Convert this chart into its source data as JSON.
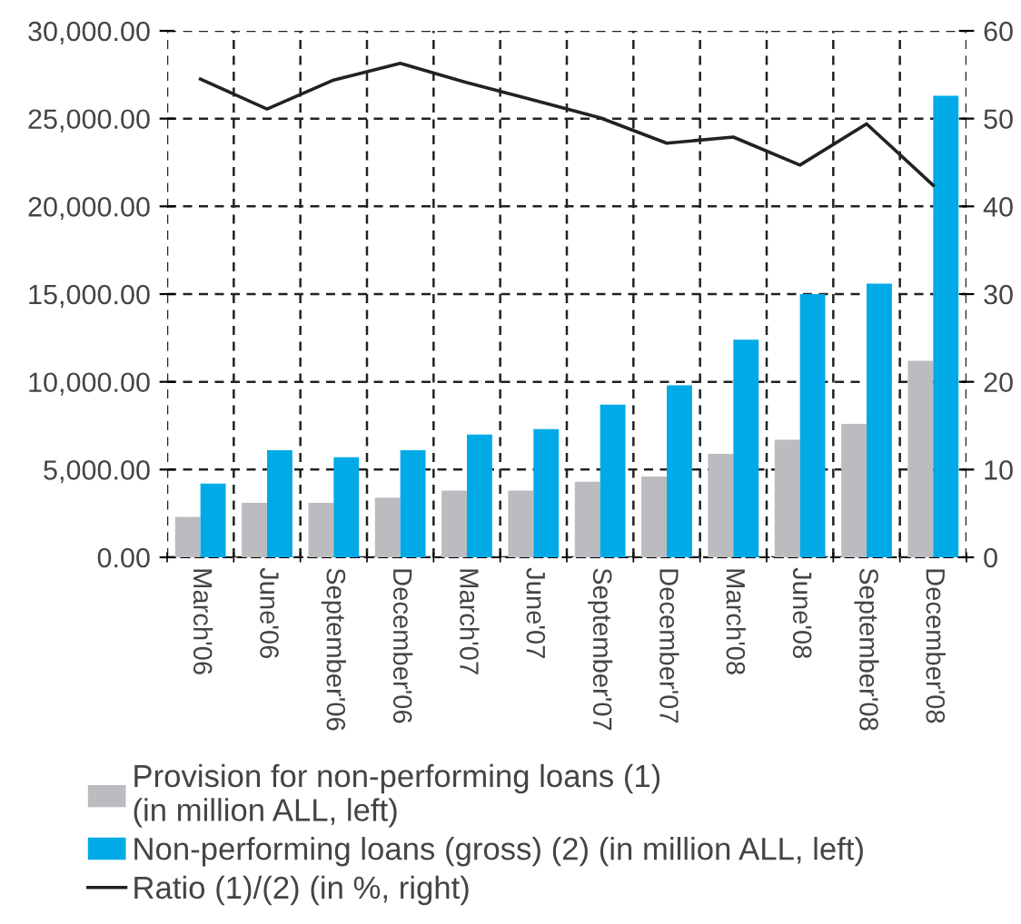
{
  "chart_data": {
    "type": "bar",
    "categories": [
      "March'06",
      "June'06",
      "September'06",
      "December'06",
      "March'07",
      "June'07",
      "September'07",
      "December'07",
      "March'08",
      "June'08",
      "September'08",
      "December'08"
    ],
    "series": [
      {
        "name": "Provision for non-performing loans (1)\n(in million ALL, left)",
        "color": "#bbbcc0",
        "values": [
          2300,
          3100,
          3100,
          3400,
          3800,
          3800,
          4300,
          4600,
          5900,
          6700,
          7600,
          11200
        ]
      },
      {
        "name": "Non-performing loans (gross) (2) (in million ALL, left)",
        "color": "#00aae6",
        "values": [
          4200,
          6100,
          5700,
          6100,
          7000,
          7300,
          8700,
          9800,
          12400,
          15000,
          15600,
          26300
        ]
      },
      {
        "name": "Ratio (1)/(2) (in %, right)",
        "type": "line",
        "axis": "y2",
        "color": "#222222",
        "values": [
          54.5,
          51.1,
          54.4,
          56.3,
          54.1,
          52.1,
          50.1,
          47.2,
          47.9,
          44.7,
          49.4,
          42.4
        ]
      }
    ],
    "ylim": [
      0,
      30000
    ],
    "yticks": [
      {
        "value": 0,
        "label": "0.00"
      },
      {
        "value": 5000,
        "label": "5,000.00"
      },
      {
        "value": 10000,
        "label": "10,000.00"
      },
      {
        "value": 15000,
        "label": "15,000.00"
      },
      {
        "value": 20000,
        "label": "20,000.00"
      },
      {
        "value": 25000,
        "label": "25,000.00"
      },
      {
        "value": 30000,
        "label": "30,000.00"
      }
    ],
    "y2lim": [
      0,
      60
    ],
    "y2ticks": [
      0,
      10,
      20,
      30,
      40,
      50,
      60
    ],
    "grid": true,
    "legend": "bottom"
  }
}
